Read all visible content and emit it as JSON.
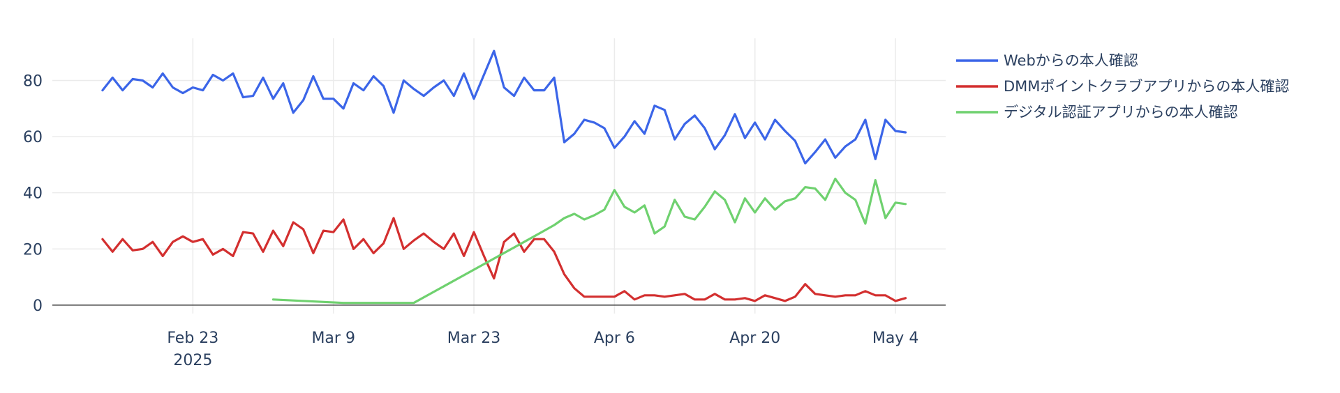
{
  "chart_data": {
    "type": "line",
    "title": "",
    "xlabel": "",
    "ylabel": "",
    "x_ticks": [
      {
        "date": "2025-02-23",
        "label": "Feb 23",
        "sublabel": "2025"
      },
      {
        "date": "2025-03-09",
        "label": "Mar 9",
        "sublabel": ""
      },
      {
        "date": "2025-03-23",
        "label": "Mar 23",
        "sublabel": ""
      },
      {
        "date": "2025-04-06",
        "label": "Apr 6",
        "sublabel": ""
      },
      {
        "date": "2025-04-20",
        "label": "Apr 20",
        "sublabel": ""
      },
      {
        "date": "2025-05-04",
        "label": "May 4",
        "sublabel": ""
      }
    ],
    "xlim": [
      "2025-02-09",
      "2025-05-09"
    ],
    "ylim": [
      -3,
      95
    ],
    "y_ticks": [
      0,
      20,
      40,
      60,
      80
    ],
    "grid": true,
    "legend_position": "top-right",
    "series": [
      {
        "name": "Webからの本人確認",
        "color": "#3b65e8",
        "x": [
          "2025-02-14",
          "2025-02-15",
          "2025-02-16",
          "2025-02-17",
          "2025-02-18",
          "2025-02-19",
          "2025-02-20",
          "2025-02-21",
          "2025-02-22",
          "2025-02-23",
          "2025-02-24",
          "2025-02-25",
          "2025-02-26",
          "2025-02-27",
          "2025-02-28",
          "2025-03-01",
          "2025-03-02",
          "2025-03-03",
          "2025-03-04",
          "2025-03-05",
          "2025-03-06",
          "2025-03-07",
          "2025-03-08",
          "2025-03-09",
          "2025-03-10",
          "2025-03-11",
          "2025-03-12",
          "2025-03-13",
          "2025-03-14",
          "2025-03-15",
          "2025-03-16",
          "2025-03-17",
          "2025-03-18",
          "2025-03-19",
          "2025-03-20",
          "2025-03-21",
          "2025-03-22",
          "2025-03-23",
          "2025-03-24",
          "2025-03-25",
          "2025-03-26",
          "2025-03-27",
          "2025-03-28",
          "2025-03-29",
          "2025-03-30",
          "2025-03-31",
          "2025-04-01",
          "2025-04-02",
          "2025-04-03",
          "2025-04-04",
          "2025-04-05",
          "2025-04-06",
          "2025-04-07",
          "2025-04-08",
          "2025-04-09",
          "2025-04-10",
          "2025-04-11",
          "2025-04-12",
          "2025-04-13",
          "2025-04-14",
          "2025-04-15",
          "2025-04-16",
          "2025-04-17",
          "2025-04-18",
          "2025-04-19",
          "2025-04-20",
          "2025-04-21",
          "2025-04-22",
          "2025-04-23",
          "2025-04-24",
          "2025-04-25",
          "2025-04-26",
          "2025-04-27",
          "2025-04-28",
          "2025-04-29",
          "2025-04-30",
          "2025-05-01",
          "2025-05-02",
          "2025-05-03",
          "2025-05-04",
          "2025-05-05"
        ],
        "y": [
          76.5,
          81,
          76.5,
          80.5,
          80,
          77.5,
          82.5,
          77.5,
          75.5,
          77.5,
          76.5,
          82,
          80,
          82.5,
          74,
          74.5,
          81,
          73.5,
          79,
          68.5,
          73,
          81.5,
          73.5,
          73.5,
          70,
          79,
          76.5,
          81.5,
          78,
          68.5,
          80,
          77,
          74.5,
          77.5,
          80,
          74.5,
          82.5,
          73.5,
          82,
          90.5,
          77.5,
          74.5,
          81,
          76.5,
          76.5,
          81,
          58,
          61,
          66,
          65,
          63,
          56,
          60,
          65.5,
          61,
          71,
          69.5,
          59,
          64.5,
          67.5,
          63,
          55.5,
          60.5,
          68,
          59.5,
          65,
          59,
          66,
          62,
          58.5,
          50.5,
          54.5,
          59,
          52.5,
          56.5,
          59,
          66,
          52,
          66,
          62,
          61.5
        ]
      },
      {
        "name": "DMMポイントクラブアプリからの本人確認",
        "color": "#d32f2f",
        "x": [
          "2025-02-14",
          "2025-02-15",
          "2025-02-16",
          "2025-02-17",
          "2025-02-18",
          "2025-02-19",
          "2025-02-20",
          "2025-02-21",
          "2025-02-22",
          "2025-02-23",
          "2025-02-24",
          "2025-02-25",
          "2025-02-26",
          "2025-02-27",
          "2025-02-28",
          "2025-03-01",
          "2025-03-02",
          "2025-03-03",
          "2025-03-04",
          "2025-03-05",
          "2025-03-06",
          "2025-03-07",
          "2025-03-08",
          "2025-03-09",
          "2025-03-10",
          "2025-03-11",
          "2025-03-12",
          "2025-03-13",
          "2025-03-14",
          "2025-03-15",
          "2025-03-16",
          "2025-03-17",
          "2025-03-18",
          "2025-03-19",
          "2025-03-20",
          "2025-03-21",
          "2025-03-22",
          "2025-03-23",
          "2025-03-24",
          "2025-03-25",
          "2025-03-26",
          "2025-03-27",
          "2025-03-28",
          "2025-03-29",
          "2025-03-30",
          "2025-03-31",
          "2025-04-01",
          "2025-04-02",
          "2025-04-03",
          "2025-04-04",
          "2025-04-05",
          "2025-04-06",
          "2025-04-07",
          "2025-04-08",
          "2025-04-09",
          "2025-04-10",
          "2025-04-11",
          "2025-04-12",
          "2025-04-13",
          "2025-04-14",
          "2025-04-15",
          "2025-04-16",
          "2025-04-17",
          "2025-04-18",
          "2025-04-19",
          "2025-04-20",
          "2025-04-21",
          "2025-04-22",
          "2025-04-23",
          "2025-04-24",
          "2025-04-25",
          "2025-04-26",
          "2025-04-27",
          "2025-04-28",
          "2025-04-29",
          "2025-04-30",
          "2025-05-01",
          "2025-05-02",
          "2025-05-03",
          "2025-05-04",
          "2025-05-05"
        ],
        "y": [
          23.5,
          19,
          23.5,
          19.5,
          20,
          22.5,
          17.5,
          22.5,
          24.5,
          22.5,
          23.5,
          18,
          20,
          17.5,
          26,
          25.5,
          19,
          26.5,
          21,
          29.5,
          27,
          18.5,
          26.5,
          26,
          30.5,
          20,
          23.5,
          18.5,
          22,
          31,
          20,
          23,
          25.5,
          22.5,
          20,
          25.5,
          17.5,
          26,
          17.5,
          9.5,
          22.5,
          25.5,
          19,
          23.5,
          23.5,
          19,
          11,
          6,
          3,
          3,
          3,
          3,
          5,
          2,
          3.5,
          3.5,
          3,
          3.5,
          4,
          2,
          2,
          4,
          2,
          2,
          2.5,
          1.5,
          3.5,
          2.5,
          1.5,
          3,
          7.5,
          4,
          3.5,
          3,
          3.5,
          3.5,
          5,
          3.5,
          3.5,
          1.5,
          2.5
        ]
      },
      {
        "name": "デジタル認証アプリからの本人確認",
        "color": "#6fd16f",
        "x": [
          "2025-03-03",
          "2025-03-10",
          "2025-03-17",
          "2025-03-28",
          "2025-03-29",
          "2025-03-30",
          "2025-03-31",
          "2025-04-01",
          "2025-04-02",
          "2025-04-03",
          "2025-04-04",
          "2025-04-05",
          "2025-04-06",
          "2025-04-07",
          "2025-04-08",
          "2025-04-09",
          "2025-04-10",
          "2025-04-11",
          "2025-04-12",
          "2025-04-13",
          "2025-04-14",
          "2025-04-15",
          "2025-04-16",
          "2025-04-17",
          "2025-04-18",
          "2025-04-19",
          "2025-04-20",
          "2025-04-21",
          "2025-04-22",
          "2025-04-23",
          "2025-04-24",
          "2025-04-25",
          "2025-04-26",
          "2025-04-27",
          "2025-04-28",
          "2025-04-29",
          "2025-04-30",
          "2025-05-01",
          "2025-05-02",
          "2025-05-03",
          "2025-05-04",
          "2025-05-05"
        ],
        "y": [
          2,
          0.8,
          0.8,
          22.5,
          24.5,
          26.5,
          28.5,
          31,
          32.5,
          30.5,
          32,
          34,
          41,
          35,
          33,
          35.5,
          25.5,
          28,
          37.5,
          31.5,
          30.5,
          35,
          40.5,
          37.5,
          29.5,
          38,
          33,
          38,
          34,
          37,
          38,
          42,
          41.5,
          37.5,
          45,
          40,
          37.5,
          29,
          44.5,
          31,
          36.5,
          36
        ]
      }
    ]
  }
}
